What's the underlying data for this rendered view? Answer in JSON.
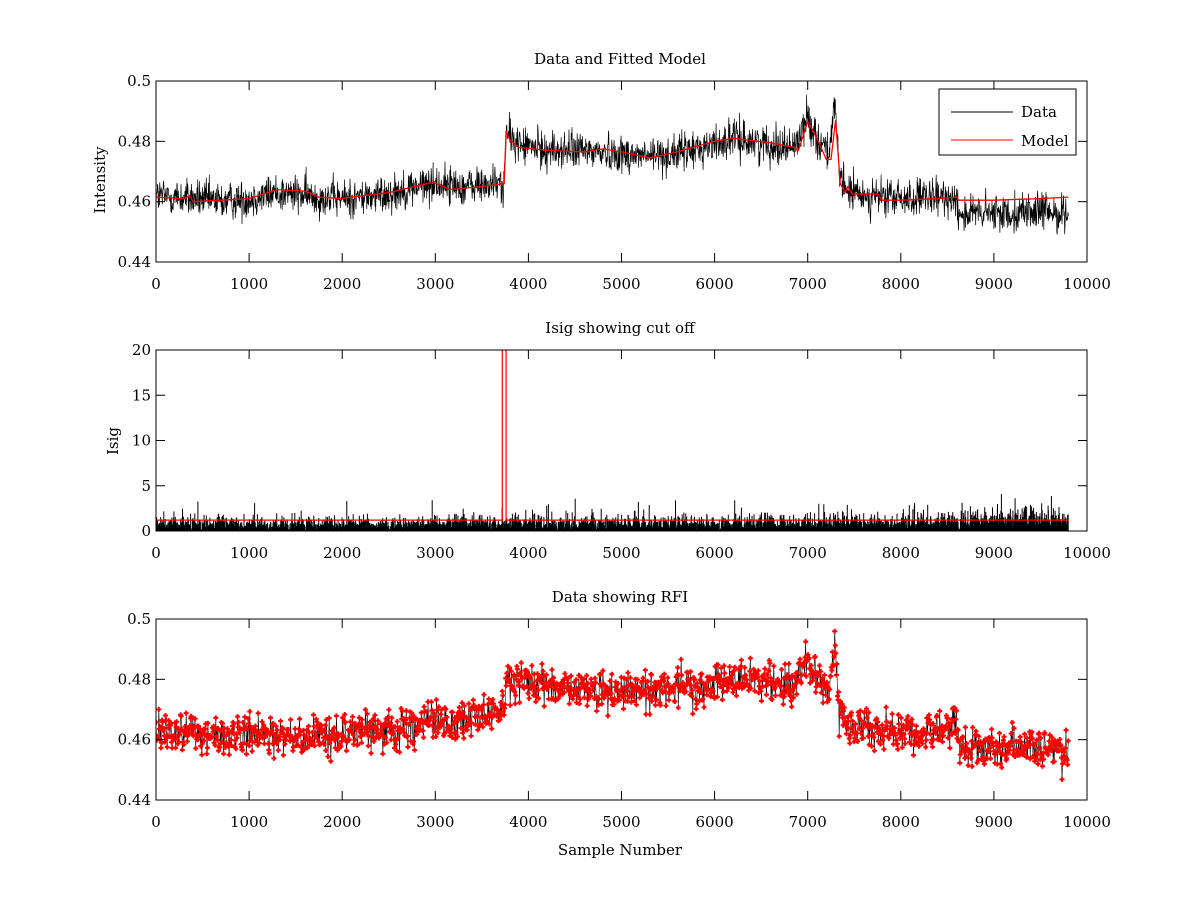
{
  "chart_data": [
    {
      "id": "top",
      "type": "line",
      "title": "Data and Fitted Model",
      "xlabel": "",
      "ylabel": "Intensity",
      "xlim": [
        0,
        10000
      ],
      "ylim": [
        0.44,
        0.5
      ],
      "xticks": [
        0,
        1000,
        2000,
        3000,
        4000,
        5000,
        6000,
        7000,
        8000,
        9000,
        10000
      ],
      "yticks": [
        0.44,
        0.46,
        0.48,
        0.5
      ],
      "ytick_labels": [
        "0.44",
        "0.46",
        "0.48",
        "0.5"
      ],
      "grid": false,
      "legend": {
        "position": "top-right",
        "entries": [
          "Data",
          "Model"
        ]
      },
      "series": [
        {
          "name": "Data",
          "color": "#000000",
          "style": "noisy-line",
          "noise": 0.0045,
          "x": [
            0,
            400,
            700,
            1000,
            1300,
            1600,
            2000,
            2400,
            2800,
            3000,
            3300,
            3740,
            3760,
            3900,
            4200,
            4600,
            5000,
            5300,
            5600,
            6000,
            6200,
            6600,
            6850,
            7000,
            7100,
            7230,
            7290,
            7340,
            7450,
            7600,
            8000,
            8400,
            8600,
            8620,
            9000,
            9400,
            9800
          ],
          "y": [
            0.462,
            0.461,
            0.46,
            0.461,
            0.463,
            0.462,
            0.461,
            0.462,
            0.465,
            0.466,
            0.465,
            0.466,
            0.482,
            0.479,
            0.477,
            0.477,
            0.476,
            0.475,
            0.476,
            0.479,
            0.481,
            0.479,
            0.478,
            0.488,
            0.481,
            0.477,
            0.492,
            0.468,
            0.463,
            0.462,
            0.461,
            0.461,
            0.462,
            0.456,
            0.456,
            0.457,
            0.456
          ]
        },
        {
          "name": "Model",
          "color": "#ff0000",
          "style": "line",
          "x": [
            0,
            300,
            360,
            400,
            700,
            1000,
            1300,
            1600,
            1750,
            2000,
            2100,
            2500,
            2980,
            3150,
            3500,
            3740,
            3760,
            3800,
            3900,
            4200,
            4600,
            4800,
            5000,
            5300,
            5600,
            6000,
            6200,
            6600,
            6850,
            6900,
            7000,
            7100,
            7200,
            7250,
            7300,
            7350,
            7400,
            7430,
            7480,
            7750,
            7800,
            8000,
            8400,
            8600,
            8620,
            9000,
            9500,
            9800
          ],
          "y": [
            0.4615,
            0.461,
            0.462,
            0.46,
            0.4605,
            0.461,
            0.464,
            0.4635,
            0.4615,
            0.461,
            0.4615,
            0.463,
            0.4665,
            0.464,
            0.465,
            0.466,
            0.4835,
            0.4805,
            0.478,
            0.477,
            0.4765,
            0.4775,
            0.4765,
            0.4745,
            0.4765,
            0.48,
            0.481,
            0.4795,
            0.478,
            0.477,
            0.4865,
            0.481,
            0.474,
            0.474,
            0.487,
            0.466,
            0.463,
            0.465,
            0.4625,
            0.4625,
            0.4605,
            0.4605,
            0.461,
            0.4615,
            0.4605,
            0.4605,
            0.461,
            0.4615
          ]
        }
      ]
    },
    {
      "id": "middle",
      "type": "line",
      "title": "Isig showing cut off",
      "xlabel": "",
      "ylabel": "Isig",
      "xlim": [
        0,
        10000
      ],
      "ylim": [
        0,
        20
      ],
      "xticks": [
        0,
        1000,
        2000,
        3000,
        4000,
        5000,
        6000,
        7000,
        8000,
        9000,
        10000
      ],
      "yticks": [
        0,
        5,
        10,
        15,
        20
      ],
      "ytick_labels": [
        "0",
        "5",
        "10",
        "15",
        "20"
      ],
      "grid": false,
      "series": [
        {
          "name": "Isig",
          "color": "#000000",
          "style": "noisy-bars",
          "x": [
            0,
            2000,
            4000,
            6000,
            8000,
            8600,
            9800
          ],
          "y": [
            1.6,
            1.5,
            1.6,
            1.6,
            1.7,
            2.2,
            2.5
          ]
        },
        {
          "name": "Cut off",
          "color": "#ff0000",
          "style": "step",
          "x": [
            0,
            3720,
            3720,
            3760,
            3760,
            9800
          ],
          "y": [
            1.2,
            1.2,
            20,
            20,
            1.2,
            1.2
          ]
        }
      ]
    },
    {
      "id": "bottom",
      "type": "scatter",
      "title": "Data showing RFI",
      "xlabel": "Sample Number",
      "ylabel": "",
      "xlim": [
        0,
        10000
      ],
      "ylim": [
        0.44,
        0.5
      ],
      "xticks": [
        0,
        1000,
        2000,
        3000,
        4000,
        5000,
        6000,
        7000,
        8000,
        9000,
        10000
      ],
      "yticks": [
        0.44,
        0.46,
        0.48,
        0.5
      ],
      "ytick_labels": [
        "0.44",
        "0.46",
        "0.48",
        "0.5"
      ],
      "grid": false,
      "series": [
        {
          "name": "Data",
          "color": "#ff0000",
          "style": "stem-markers",
          "noise": 0.0045,
          "x": [
            0,
            700,
            1000,
            1500,
            2000,
            2500,
            3000,
            3400,
            3740,
            3760,
            3950,
            4300,
            4700,
            5000,
            5400,
            5800,
            6200,
            6600,
            6850,
            7000,
            7100,
            7230,
            7290,
            7340,
            7450,
            7800,
            8200,
            8600,
            8620,
            9000,
            9400,
            9800
          ],
          "y": [
            0.464,
            0.461,
            0.461,
            0.461,
            0.462,
            0.463,
            0.466,
            0.467,
            0.469,
            0.481,
            0.479,
            0.477,
            0.476,
            0.476,
            0.477,
            0.478,
            0.48,
            0.479,
            0.478,
            0.487,
            0.48,
            0.477,
            0.492,
            0.468,
            0.464,
            0.463,
            0.462,
            0.464,
            0.457,
            0.457,
            0.457,
            0.456
          ]
        }
      ]
    }
  ]
}
